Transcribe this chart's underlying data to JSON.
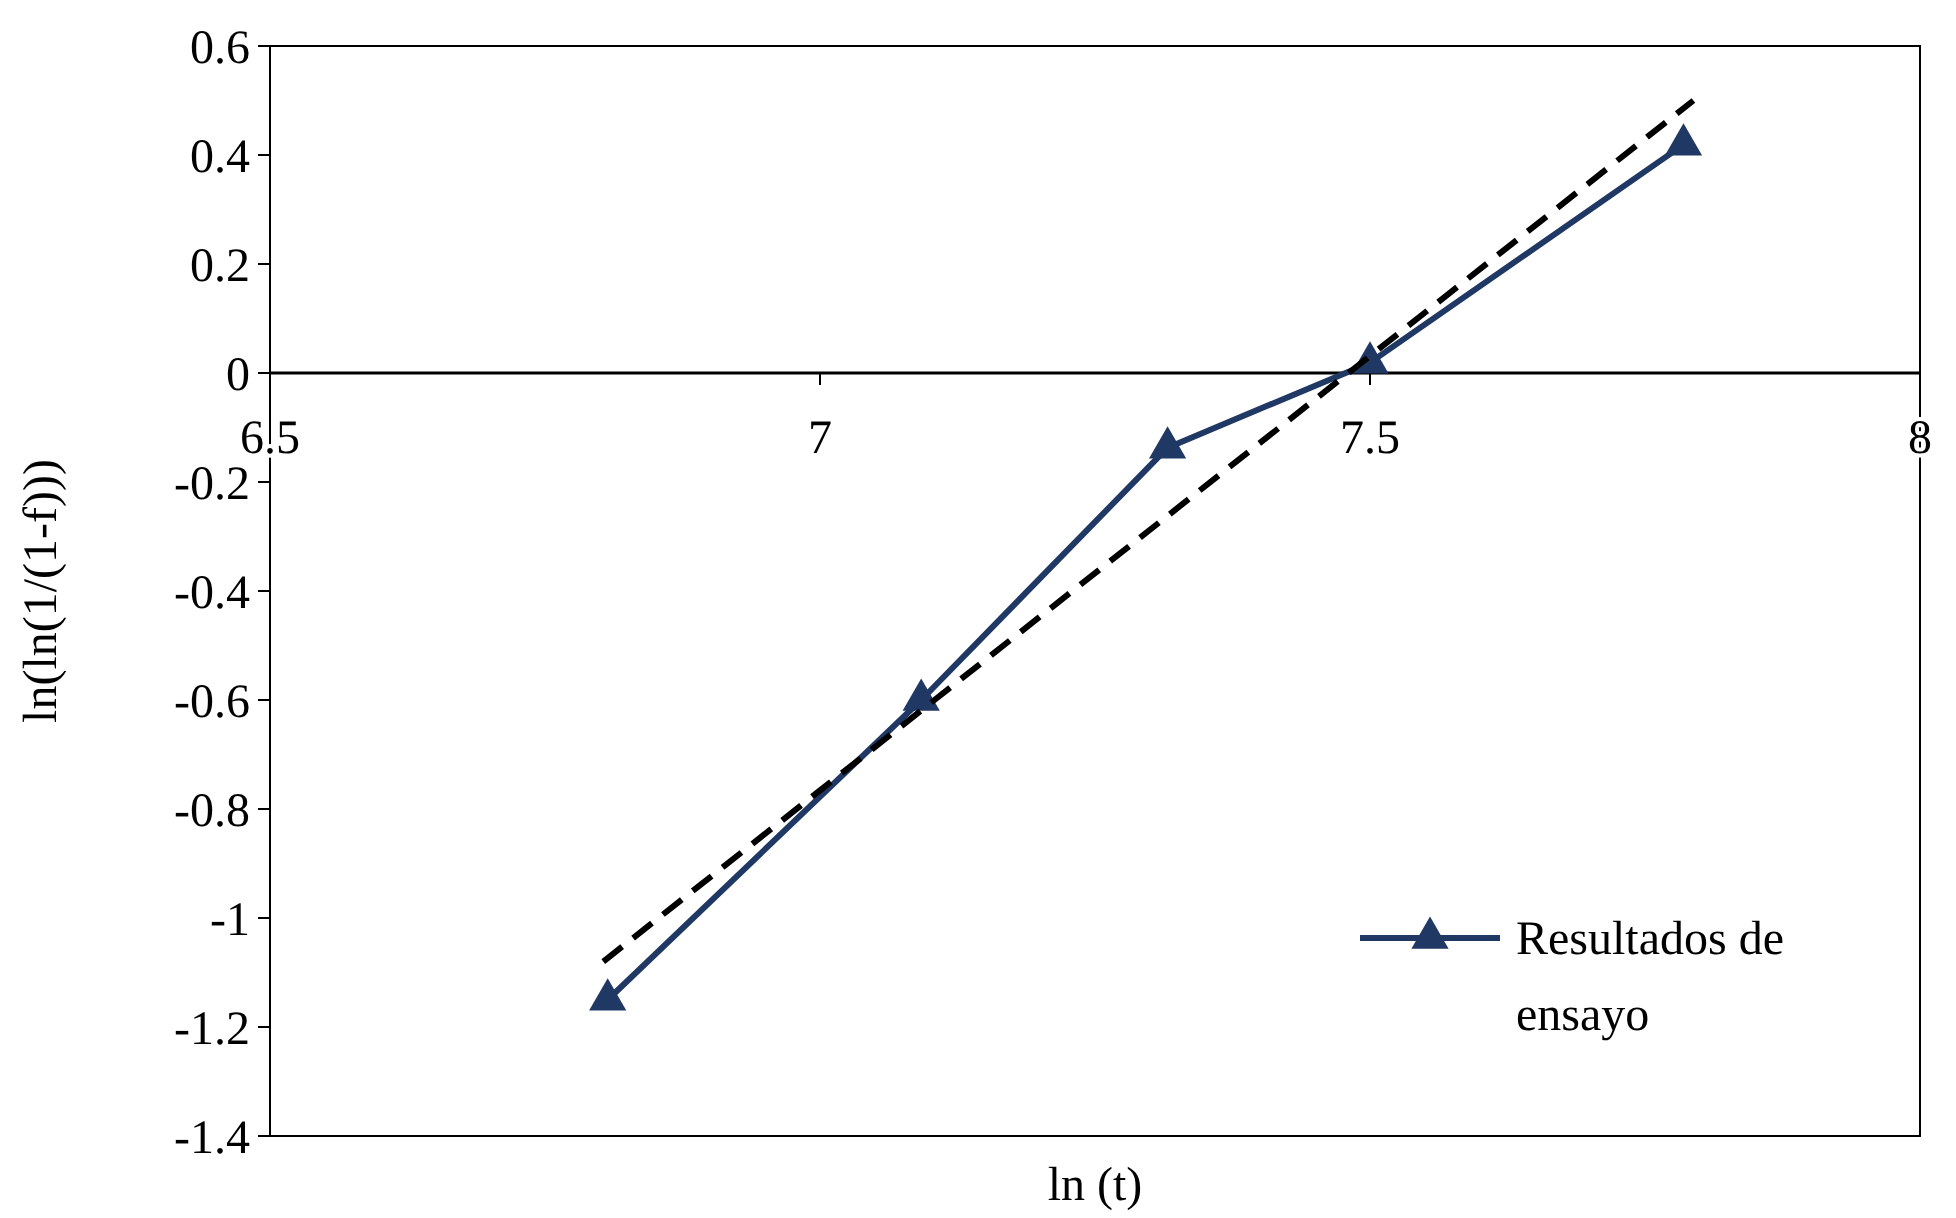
{
  "chart_data": {
    "type": "line",
    "xlabel": "ln (t)",
    "ylabel": "ln(ln(1/(1-f)))",
    "xlim": [
      6.5,
      8
    ],
    "xticks": [
      6.5,
      7,
      7.5,
      8
    ],
    "ylim": [
      -1.4,
      0.6
    ],
    "yticks": [
      -1.4,
      -1.2,
      -1,
      -0.8,
      -0.6,
      -0.4,
      -0.2,
      0,
      0.2,
      0.4,
      0.6
    ],
    "grid": false,
    "legend": "bottom right",
    "series": [
      {
        "name": "Resultados de ensayo",
        "color": "#1f3864",
        "x": [
          6.807,
          7.092,
          7.316,
          7.5,
          7.785
        ],
        "values": [
          -1.15,
          -0.6,
          -0.137,
          0.019,
          0.419
        ],
        "marker": "triangle",
        "line_style": "solid"
      },
      {
        "type": "line",
        "color": "#000000",
        "x": [
          6.803,
          7.794
        ],
        "values": [
          -1.08,
          0.5
        ],
        "marker": "none",
        "line_style": "dashed"
      }
    ]
  }
}
